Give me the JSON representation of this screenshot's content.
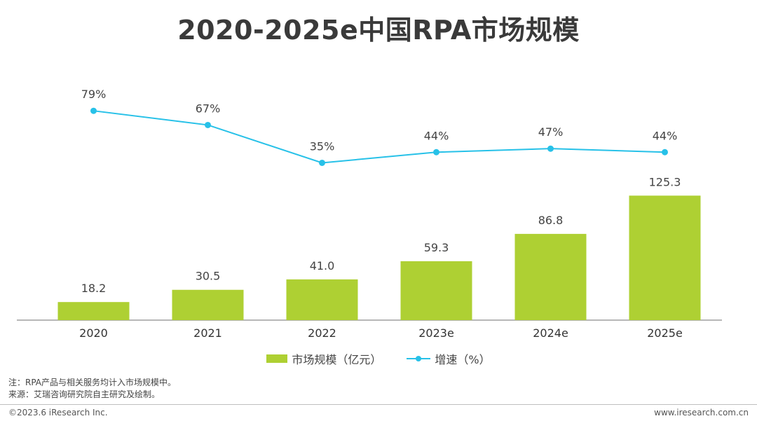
{
  "title": "2020-2025e中国RPA市场规模",
  "chart_data": {
    "type": "bar",
    "categories": [
      "2020",
      "2021",
      "2022",
      "2023e",
      "2024e",
      "2025e"
    ],
    "series": [
      {
        "name": "市场规模（亿元）",
        "type": "bar",
        "values": [
          18.2,
          30.5,
          41.0,
          59.3,
          86.8,
          125.3
        ],
        "labels": [
          "18.2",
          "30.5",
          "41.0",
          "59.3",
          "86.8",
          "125.3"
        ],
        "color": "#aed033"
      },
      {
        "name": "增速（%）",
        "type": "line",
        "values": [
          79,
          67,
          35,
          44,
          47,
          44
        ],
        "labels": [
          "79%",
          "67%",
          "35%",
          "44%",
          "47%",
          "44%"
        ],
        "color": "#27c1e8"
      }
    ],
    "xlabel": "",
    "ylabel": "",
    "grid": false,
    "legend": "bottom"
  },
  "notes": [
    "注：RPA产品与相关服务均计入市场规模中。",
    "来源：艾瑞咨询研究院自主研究及绘制。"
  ],
  "footer": {
    "left": "©2023.6 iResearch Inc.",
    "right": "www.iresearch.com.cn"
  }
}
